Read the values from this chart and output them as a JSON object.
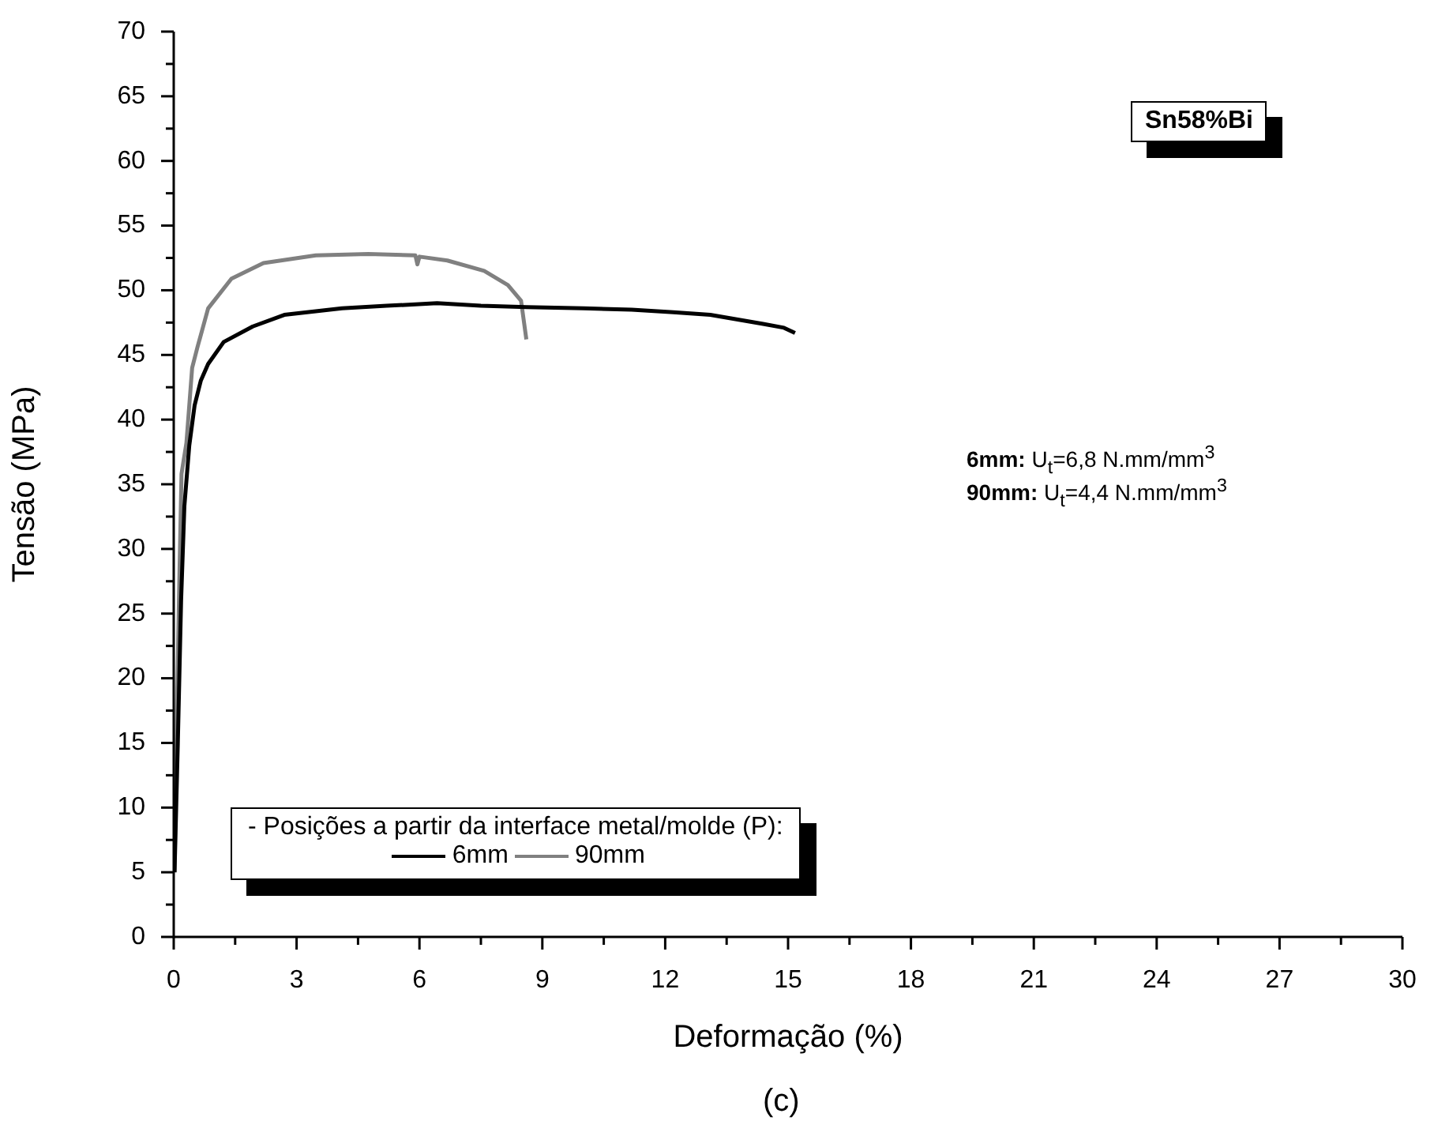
{
  "chart_data": {
    "type": "line",
    "xlabel": "Deformação (%)",
    "ylabel": "Tensão (MPa)",
    "xlim": [
      0,
      30
    ],
    "ylim": [
      0,
      70
    ],
    "xticks": [
      0,
      {
        "value": 1.5,
        "label": null
      },
      3,
      {
        "value": 4.5,
        "label": null
      },
      6,
      {
        "value": 7.5,
        "label": null
      },
      9,
      {
        "value": 10.5,
        "label": null
      },
      12,
      {
        "value": 13.5,
        "label": null
      },
      15,
      {
        "value": 16.5,
        "label": null
      },
      18,
      {
        "value": 19.5,
        "label": null
      },
      21,
      {
        "value": 22.5,
        "label": null
      },
      24,
      {
        "value": 25.5,
        "label": null
      },
      27,
      {
        "value": 28.5,
        "label": null
      },
      30
    ],
    "yticks": [
      0,
      {
        "value": 2.5,
        "label": null
      },
      5,
      {
        "value": 7.5,
        "label": null
      },
      10,
      {
        "value": 12.5,
        "label": null
      },
      15,
      {
        "value": 17.5,
        "label": null
      },
      20,
      {
        "value": 22.5,
        "label": null
      },
      25,
      {
        "value": 27.5,
        "label": null
      },
      30,
      {
        "value": 32.5,
        "label": null
      },
      35,
      {
        "value": 37.5,
        "label": null
      },
      40,
      {
        "value": 42.5,
        "label": null
      },
      45,
      {
        "value": 47.5,
        "label": null
      },
      50,
      {
        "value": 52.5,
        "label": null
      },
      55,
      {
        "value": 57.5,
        "label": null
      },
      60,
      {
        "value": 62.5,
        "label": null
      },
      65,
      {
        "value": 67.5,
        "label": null
      },
      70
    ],
    "grid": false,
    "legend": "bottom left",
    "legend_title": "- Posições a partir da interface metal/molde (P):",
    "marker": "none",
    "line_style": "solid",
    "series": [
      {
        "name": "6mm",
        "color": "#000000",
        "x": [
          0.02,
          0.1,
          0.18,
          0.26,
          0.38,
          0.51,
          0.66,
          0.84,
          1.22,
          1.93,
          2.7,
          4.11,
          5.2,
          6.43,
          7.5,
          8.61,
          10,
          11.18,
          12.2,
          13.1,
          14.39,
          14.9,
          15.17
        ],
        "values": [
          5,
          15,
          26,
          33.3,
          38,
          41.1,
          43,
          44.3,
          46,
          47.2,
          48.1,
          48.6,
          48.8,
          49,
          48.8,
          48.7,
          48.6,
          48.5,
          48.3,
          48.1,
          47.4,
          47.1,
          46.7
        ]
      },
      {
        "name": "90mm",
        "color": "#808080",
        "x": [
          0.02,
          0.08,
          0.14,
          0.19,
          0.31,
          0.45,
          0.58,
          0.84,
          1.41,
          2.19,
          3.47,
          4.75,
          5.9,
          5.95,
          6.0,
          6.68,
          7.58,
          8.16,
          8.48,
          8.61
        ],
        "values": [
          5,
          18,
          28,
          35.8,
          38.2,
          44,
          45.6,
          48.6,
          50.9,
          52.1,
          52.7,
          52.8,
          52.7,
          52,
          52.6,
          52.3,
          51.5,
          50.4,
          49.2,
          46.2
        ]
      }
    ],
    "annotations": [
      "Sn58%Bi",
      "6mm: U$_{t}$=6,8 N.mm/mm$^{3}$",
      "90mm: U$_{t}$=4,4 N.mm/mm$^{3}$",
      "(c)"
    ]
  }
}
